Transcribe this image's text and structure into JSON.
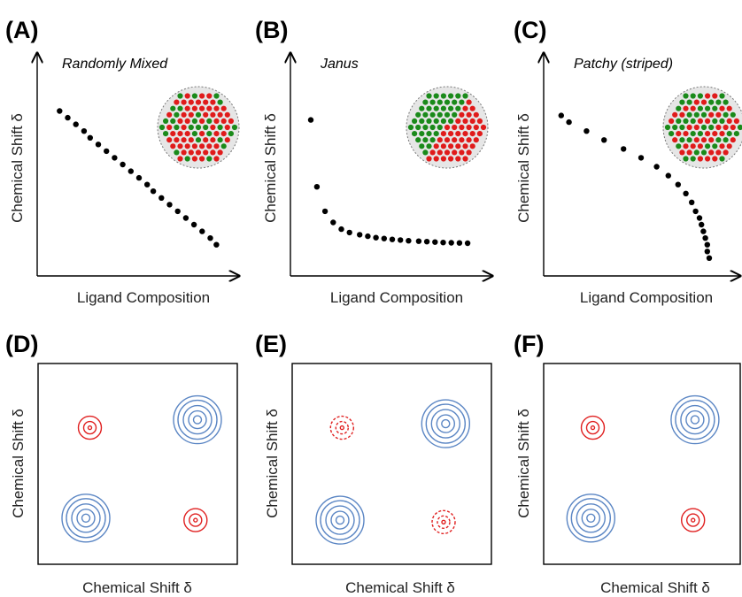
{
  "figure": {
    "panels": [
      {
        "id": "A",
        "letter": "(A)",
        "title": "Randomly Mixed",
        "xlabel": "Ligand Composition",
        "ylabel": "Chemical Shift δ",
        "inset": "randomly-mixed",
        "chart_type": "scatter",
        "trend": "linear decrease",
        "colors": {
          "ligand_a": "#e01b1b",
          "ligand_b": "#1a8a1a",
          "points": "#000000"
        }
      },
      {
        "id": "B",
        "letter": "(B)",
        "title": "Janus",
        "xlabel": "Ligand Composition",
        "ylabel": "Chemical Shift δ",
        "inset": "janus",
        "chart_type": "scatter",
        "trend": "sharp drop then plateau",
        "colors": {
          "ligand_a": "#e01b1b",
          "ligand_b": "#1a8a1a",
          "points": "#000000"
        }
      },
      {
        "id": "C",
        "letter": "(C)",
        "title": "Patchy (striped)",
        "xlabel": "Ligand Composition",
        "ylabel": "Chemical Shift δ",
        "inset": "patchy-striped",
        "chart_type": "scatter",
        "trend": "slow decrease then steep drop",
        "colors": {
          "ligand_a": "#e01b1b",
          "ligand_b": "#1a8a1a",
          "points": "#000000"
        }
      },
      {
        "id": "D",
        "letter": "(D)",
        "xlabel": "Chemical Shift δ",
        "ylabel": "Chemical Shift δ",
        "chart_type": "2D NMR contour",
        "peaks": [
          {
            "position": "top-left",
            "color": "#e02020",
            "strength": "weak",
            "style": "solid"
          },
          {
            "position": "top-right",
            "color": "#5b86c4",
            "strength": "strong",
            "style": "solid"
          },
          {
            "position": "bottom-left",
            "color": "#5b86c4",
            "strength": "strong",
            "style": "solid"
          },
          {
            "position": "bottom-right",
            "color": "#e02020",
            "strength": "weak",
            "style": "solid"
          }
        ]
      },
      {
        "id": "E",
        "letter": "(E)",
        "xlabel": "Chemical Shift δ",
        "ylabel": "Chemical Shift δ",
        "chart_type": "2D NMR contour",
        "peaks": [
          {
            "position": "top-left",
            "color": "#e02020",
            "strength": "very weak",
            "style": "dashed"
          },
          {
            "position": "top-right",
            "color": "#5b86c4",
            "strength": "strong",
            "style": "solid"
          },
          {
            "position": "bottom-left",
            "color": "#5b86c4",
            "strength": "strong",
            "style": "solid"
          },
          {
            "position": "bottom-right",
            "color": "#e02020",
            "strength": "very weak",
            "style": "dashed"
          }
        ]
      },
      {
        "id": "F",
        "letter": "(F)",
        "xlabel": "Chemical Shift δ",
        "ylabel": "Chemical Shift δ",
        "chart_type": "2D NMR contour",
        "peaks": [
          {
            "position": "top-left",
            "color": "#e02020",
            "strength": "weak",
            "style": "solid"
          },
          {
            "position": "top-right",
            "color": "#5b86c4",
            "strength": "strong",
            "style": "solid"
          },
          {
            "position": "bottom-left",
            "color": "#5b86c4",
            "strength": "strong",
            "style": "solid"
          },
          {
            "position": "bottom-right",
            "color": "#e02020",
            "strength": "weak",
            "style": "solid"
          }
        ]
      }
    ]
  },
  "chart_data": [
    {
      "type": "scatter",
      "title": "Randomly Mixed",
      "xlabel": "Ligand Composition",
      "ylabel": "Chemical Shift δ",
      "xlim": [
        0,
        1
      ],
      "ylim": [
        0,
        1
      ],
      "axis_ticks": false,
      "x": [
        0.11,
        0.15,
        0.19,
        0.23,
        0.26,
        0.3,
        0.34,
        0.38,
        0.42,
        0.46,
        0.5,
        0.54,
        0.57,
        0.61,
        0.65,
        0.69,
        0.73,
        0.77,
        0.81,
        0.85,
        0.88
      ],
      "y": [
        0.74,
        0.71,
        0.68,
        0.65,
        0.62,
        0.59,
        0.56,
        0.53,
        0.5,
        0.47,
        0.44,
        0.41,
        0.38,
        0.35,
        0.32,
        0.29,
        0.26,
        0.23,
        0.2,
        0.17,
        0.14
      ]
    },
    {
      "type": "scatter",
      "title": "Janus",
      "xlabel": "Ligand Composition",
      "ylabel": "Chemical Shift δ",
      "xlim": [
        0,
        1
      ],
      "ylim": [
        0,
        1
      ],
      "axis_ticks": false,
      "x": [
        0.1,
        0.13,
        0.17,
        0.21,
        0.25,
        0.29,
        0.34,
        0.38,
        0.42,
        0.46,
        0.5,
        0.54,
        0.58,
        0.63,
        0.67,
        0.71,
        0.75,
        0.79,
        0.83,
        0.87
      ],
      "y": [
        0.7,
        0.4,
        0.29,
        0.24,
        0.21,
        0.195,
        0.185,
        0.178,
        0.172,
        0.168,
        0.164,
        0.161,
        0.158,
        0.156,
        0.154,
        0.152,
        0.15,
        0.149,
        0.148,
        0.147
      ]
    },
    {
      "type": "scatter",
      "title": "Patchy (striped)",
      "xlabel": "Ligand Composition",
      "ylabel": "Chemical Shift δ",
      "xlim": [
        0,
        1
      ],
      "ylim": [
        0,
        1
      ],
      "axis_ticks": false,
      "x": [
        0.09,
        0.13,
        0.22,
        0.31,
        0.41,
        0.5,
        0.58,
        0.64,
        0.69,
        0.73,
        0.76,
        0.78,
        0.8,
        0.81,
        0.82,
        0.83,
        0.84,
        0.84,
        0.85
      ],
      "y": [
        0.72,
        0.69,
        0.65,
        0.61,
        0.57,
        0.53,
        0.49,
        0.45,
        0.41,
        0.37,
        0.33,
        0.29,
        0.26,
        0.23,
        0.2,
        0.17,
        0.14,
        0.11,
        0.08
      ]
    },
    {
      "type": "heatmap",
      "subtype": "2D contour",
      "xlabel": "Chemical Shift δ",
      "ylabel": "Chemical Shift δ",
      "xlim": [
        0,
        1
      ],
      "ylim": [
        0,
        1
      ],
      "peaks": [
        {
          "x": 0.26,
          "y": 0.68,
          "rings": 3,
          "intensity": 0.5,
          "color": "#e02020",
          "dashed": false
        },
        {
          "x": 0.8,
          "y": 0.72,
          "rings": 5,
          "intensity": 1.0,
          "color": "#5b86c4",
          "dashed": false
        },
        {
          "x": 0.24,
          "y": 0.23,
          "rings": 5,
          "intensity": 1.0,
          "color": "#5b86c4",
          "dashed": false
        },
        {
          "x": 0.79,
          "y": 0.22,
          "rings": 3,
          "intensity": 0.5,
          "color": "#e02020",
          "dashed": false
        }
      ]
    },
    {
      "type": "heatmap",
      "subtype": "2D contour",
      "xlabel": "Chemical Shift δ",
      "ylabel": "Chemical Shift δ",
      "xlim": [
        0,
        1
      ],
      "ylim": [
        0,
        1
      ],
      "peaks": [
        {
          "x": 0.25,
          "y": 0.68,
          "rings": 3,
          "intensity": 0.3,
          "color": "#e02020",
          "dashed": true
        },
        {
          "x": 0.77,
          "y": 0.7,
          "rings": 5,
          "intensity": 1.0,
          "color": "#5b86c4",
          "dashed": false
        },
        {
          "x": 0.24,
          "y": 0.22,
          "rings": 5,
          "intensity": 1.0,
          "color": "#5b86c4",
          "dashed": false
        },
        {
          "x": 0.76,
          "y": 0.21,
          "rings": 3,
          "intensity": 0.3,
          "color": "#e02020",
          "dashed": true
        }
      ]
    },
    {
      "type": "heatmap",
      "subtype": "2D contour",
      "xlabel": "Chemical Shift δ",
      "ylabel": "Chemical Shift δ",
      "xlim": [
        0,
        1
      ],
      "ylim": [
        0,
        1
      ],
      "peaks": [
        {
          "x": 0.25,
          "y": 0.68,
          "rings": 3,
          "intensity": 0.5,
          "color": "#e02020",
          "dashed": false
        },
        {
          "x": 0.77,
          "y": 0.72,
          "rings": 5,
          "intensity": 1.0,
          "color": "#5b86c4",
          "dashed": false
        },
        {
          "x": 0.24,
          "y": 0.23,
          "rings": 5,
          "intensity": 1.0,
          "color": "#5b86c4",
          "dashed": false
        },
        {
          "x": 0.76,
          "y": 0.22,
          "rings": 3,
          "intensity": 0.5,
          "color": "#e02020",
          "dashed": false
        }
      ]
    }
  ]
}
